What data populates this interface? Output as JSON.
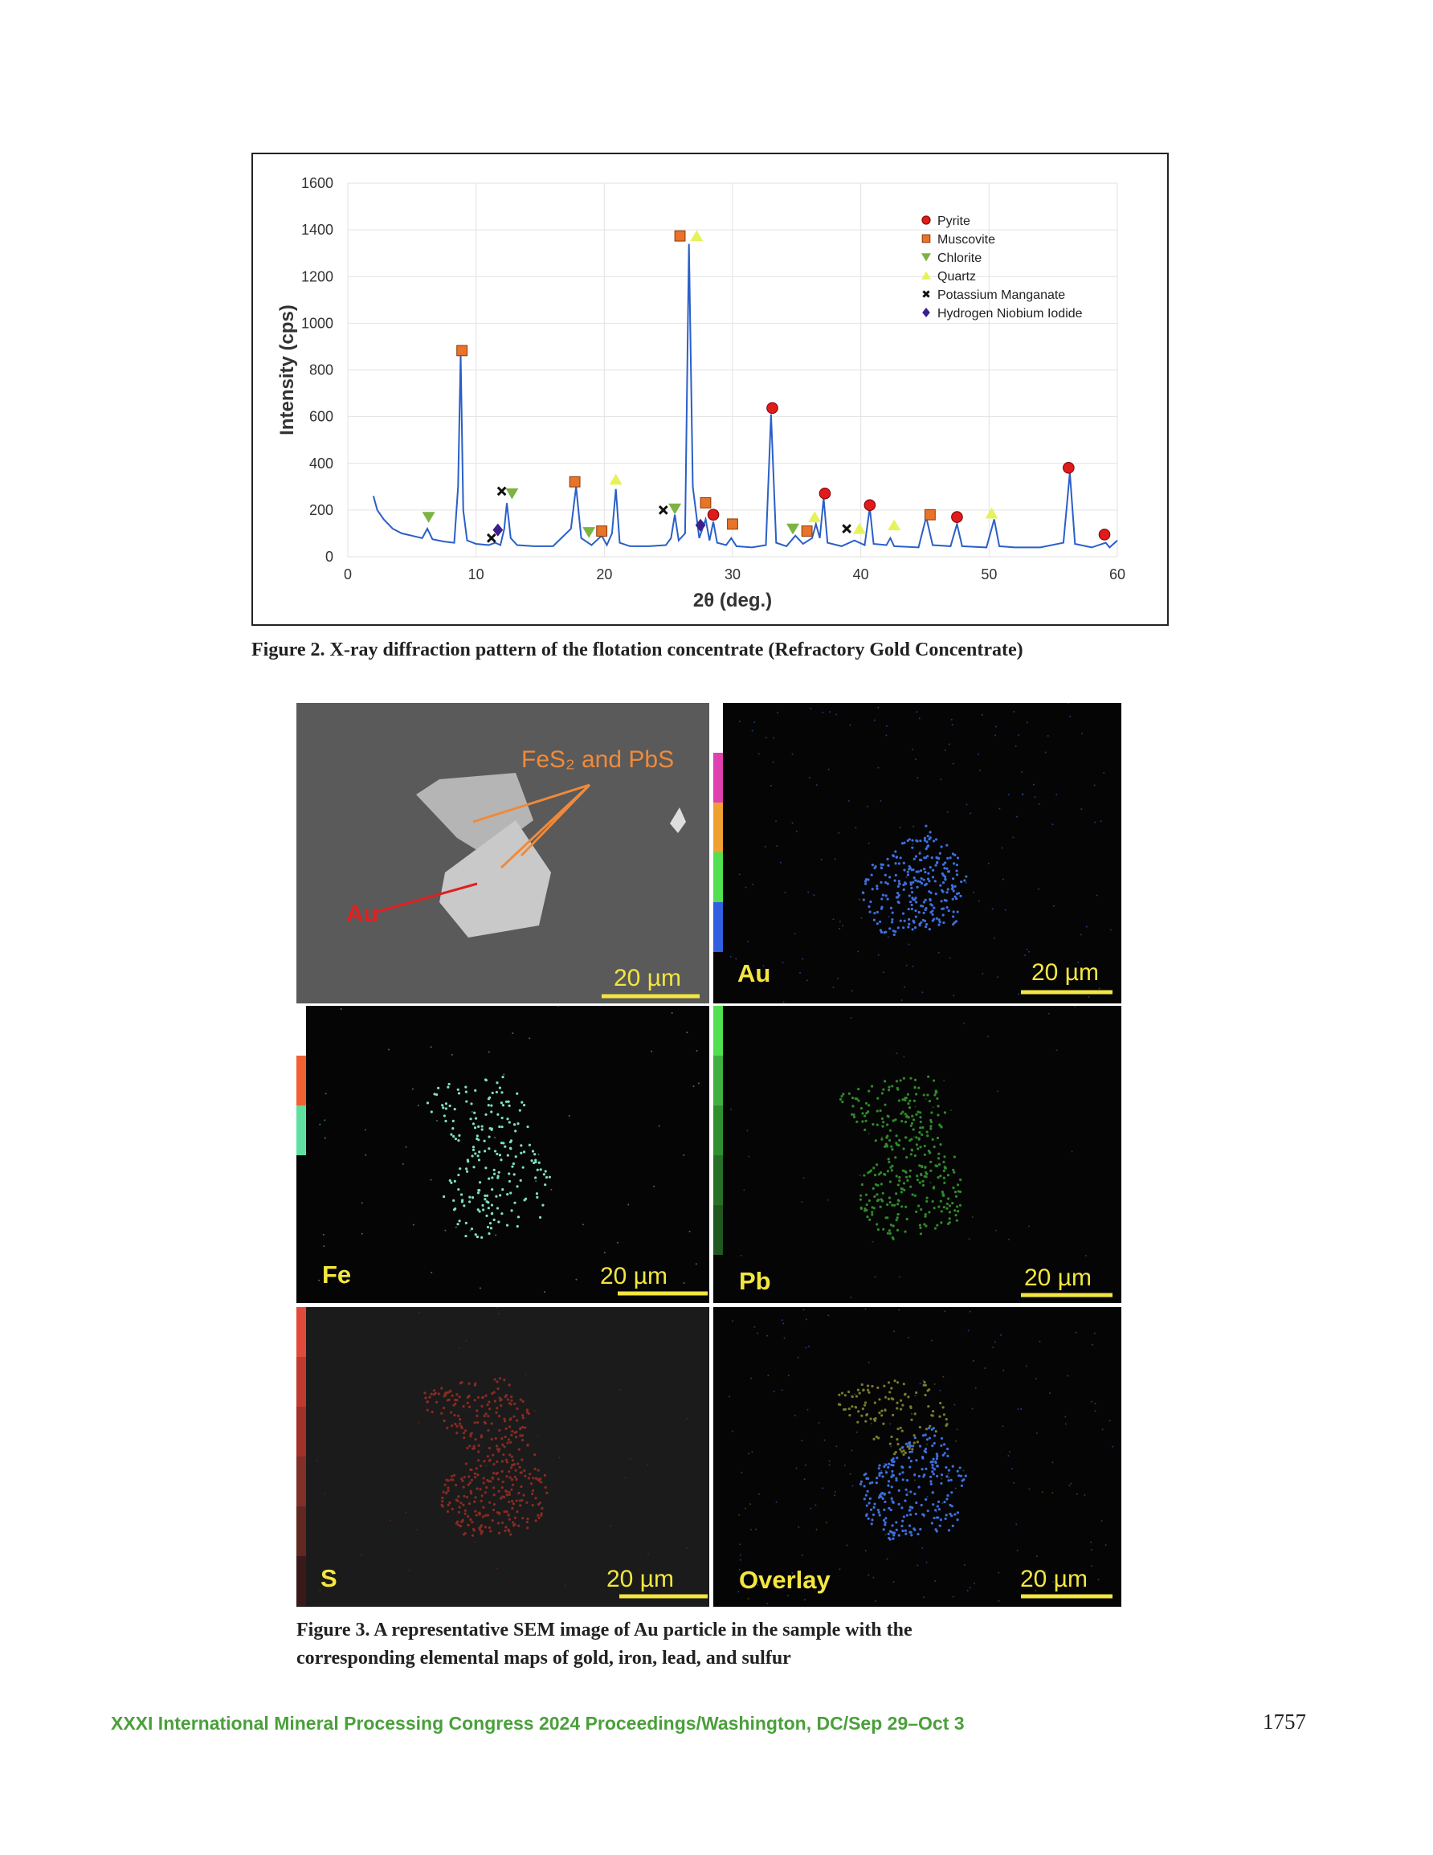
{
  "chart_data": {
    "type": "line",
    "xlabel": "2θ (deg.)",
    "ylabel": "Intensity (cps)",
    "xlim": [
      0,
      60
    ],
    "ylim": [
      0,
      1600
    ],
    "xticks": [
      0,
      10,
      20,
      30,
      40,
      50,
      60
    ],
    "yticks": [
      0,
      200,
      400,
      600,
      800,
      1000,
      1200,
      1400,
      1600
    ],
    "grid": true,
    "legend": "upper right",
    "color": "#2a5fc8",
    "x": [
      2,
      2.3,
      2.8,
      3.5,
      4.2,
      5,
      5.8,
      6.2,
      6.6,
      7.5,
      8.3,
      8.6,
      8.8,
      9.0,
      9.3,
      10,
      11,
      11.5,
      11.9,
      12.2,
      12.4,
      12.7,
      13.2,
      14.5,
      16,
      17.4,
      17.8,
      18.2,
      19,
      19.8,
      20.2,
      20.6,
      20.9,
      21.2,
      22,
      23.5,
      24.8,
      25.2,
      25.5,
      25.8,
      26.3,
      26.6,
      26.9,
      27.4,
      27.9,
      28.2,
      28.5,
      28.8,
      29.5,
      29.9,
      30.3,
      31.5,
      32.6,
      33.0,
      33.4,
      34.2,
      34.9,
      35.5,
      36.2,
      36.5,
      36.8,
      37.1,
      37.4,
      38.5,
      39.5,
      40.3,
      40.7,
      41.0,
      42.0,
      42.3,
      42.6,
      44.5,
      45.1,
      45.6,
      47.0,
      47.5,
      47.9,
      49.8,
      50.4,
      50.8,
      52,
      54,
      55.8,
      56.3,
      56.7,
      58,
      59.1,
      59.4,
      60
    ],
    "values": [
      260,
      200,
      160,
      120,
      100,
      90,
      80,
      120,
      75,
      65,
      60,
      300,
      870,
      200,
      70,
      55,
      50,
      60,
      50,
      120,
      230,
      80,
      50,
      45,
      45,
      120,
      300,
      80,
      50,
      90,
      50,
      100,
      290,
      60,
      45,
      45,
      50,
      80,
      180,
      70,
      100,
      1340,
      300,
      80,
      160,
      70,
      150,
      60,
      50,
      80,
      45,
      40,
      50,
      610,
      60,
      45,
      90,
      55,
      80,
      140,
      80,
      250,
      60,
      45,
      70,
      50,
      210,
      55,
      50,
      80,
      45,
      40,
      170,
      50,
      45,
      140,
      45,
      40,
      160,
      45,
      40,
      40,
      60,
      360,
      55,
      40,
      60,
      40,
      70
    ],
    "markers": [
      {
        "name": "Pyrite",
        "color": "#e01b1b",
        "shape": "circle",
        "x": [
          28.5,
          33.1,
          37.2,
          40.7,
          47.5,
          56.2,
          59.0
        ],
        "values": [
          180,
          637,
          271,
          221,
          170,
          381,
          95
        ]
      },
      {
        "name": "Muscovite",
        "color": "#e8732a",
        "shape": "square",
        "x": [
          8.9,
          17.7,
          19.8,
          25.9,
          27.9,
          30.0,
          35.8,
          45.4
        ],
        "values": [
          883,
          321,
          110,
          1374,
          231,
          140,
          110,
          180
        ]
      },
      {
        "name": "Chlorite",
        "color": "#7cb342",
        "shape": "triangle-down",
        "x": [
          6.3,
          12.8,
          18.8,
          25.5,
          34.7
        ],
        "values": [
          170,
          271,
          105,
          206,
          120
        ]
      },
      {
        "name": "Quartz",
        "color": "#e6f25a",
        "shape": "triangle-up",
        "x": [
          27.2,
          20.9,
          36.4,
          39.9,
          42.6,
          50.2
        ],
        "values": [
          1374,
          331,
          170,
          120,
          135,
          186
        ]
      },
      {
        "name": "Potassium Manganate",
        "color": "#111111",
        "shape": "x",
        "x": [
          12.0,
          11.2,
          24.6,
          38.9
        ],
        "values": [
          281,
          80,
          200,
          120
        ]
      },
      {
        "name": "Hydrogen Niobium Iodide",
        "color": "#3b1f8a",
        "shape": "diamond",
        "x": [
          11.7,
          27.5
        ],
        "values": [
          115,
          135
        ]
      }
    ]
  },
  "figure2": {
    "caption": "Figure 2. X-ray diffraction pattern of the flotation concentrate (Refractory Gold Concentrate)"
  },
  "figure3": {
    "panels": [
      {
        "annotation": "FeS₂ and PbS",
        "marker": "Au",
        "scale": "20 µm"
      },
      {
        "label": "Au",
        "scale": "20 µm"
      },
      {
        "label": "Fe",
        "scale": "20 µm"
      },
      {
        "label": "Pb",
        "scale": "20 µm"
      },
      {
        "label": "S",
        "scale": "20 µm"
      },
      {
        "label": "Overlay",
        "scale": "20 µm"
      }
    ],
    "caption_lines": [
      "Figure 3. A representative SEM image of Au particle in the sample with the",
      "corresponding elemental maps of gold, iron, lead, and sulfur"
    ]
  },
  "footer": {
    "text": "XXXI International Mineral Processing Congress 2024 Proceedings/Washington, DC/Sep 29–Oct 3",
    "page": "1757"
  }
}
